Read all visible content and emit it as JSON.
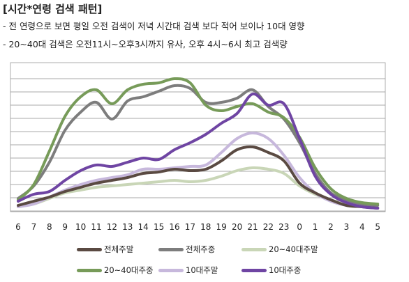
{
  "header": {
    "title": "[시간*연령 검색 패턴]",
    "bullet1": "- 전 연령으로 보면 평일 오전 검색이 저녁 시간대 검색 보다 적어 보이나 10대 영향",
    "bullet2": "- 20~40대 검색은 오전11시~오후3시까지 유사, 오후 4시~6시 최고 검색량"
  },
  "chart_data": {
    "type": "line",
    "title": "",
    "xlabel": "",
    "ylabel": "",
    "x": [
      "6",
      "7",
      "8",
      "9",
      "10",
      "11",
      "12",
      "13",
      "14",
      "15",
      "16",
      "17",
      "18",
      "19",
      "20",
      "21",
      "22",
      "23",
      "0",
      "1",
      "2",
      "3",
      "4",
      "5"
    ],
    "ylim": [
      0,
      10
    ],
    "grid": true,
    "legend_position": "bottom",
    "series": [
      {
        "name": "전체주말",
        "color": "#5a4a42",
        "values": [
          0.4,
          0.7,
          1.0,
          1.4,
          1.7,
          2.0,
          2.2,
          2.4,
          2.7,
          2.8,
          3.0,
          2.9,
          3.0,
          3.6,
          4.4,
          4.6,
          4.2,
          3.6,
          2.0,
          1.3,
          0.8,
          0.4,
          0.3,
          0.2
        ]
      },
      {
        "name": "전체주중",
        "color": "#7d7d7d",
        "values": [
          0.9,
          1.8,
          3.5,
          5.8,
          7.1,
          7.8,
          6.6,
          7.9,
          8.2,
          8.6,
          9.0,
          8.8,
          7.8,
          7.8,
          8.1,
          8.7,
          7.5,
          6.6,
          4.9,
          2.7,
          1.3,
          0.8,
          0.5,
          0.4
        ]
      },
      {
        "name": "20~40대주말",
        "color": "#c9d6b7",
        "values": [
          0.3,
          0.5,
          0.9,
          1.3,
          1.5,
          1.7,
          1.8,
          1.9,
          2.0,
          2.1,
          2.2,
          2.1,
          2.2,
          2.5,
          2.9,
          3.1,
          3.0,
          2.7,
          1.8,
          1.2,
          0.8,
          0.5,
          0.3,
          0.2
        ]
      },
      {
        "name": "20~40대주중",
        "color": "#779b59",
        "values": [
          0.8,
          1.9,
          4.3,
          6.8,
          8.2,
          8.7,
          7.7,
          8.7,
          9.1,
          9.2,
          9.5,
          9.2,
          7.6,
          7.2,
          7.5,
          7.7,
          7.1,
          6.7,
          5.3,
          3.1,
          1.6,
          0.9,
          0.6,
          0.5
        ]
      },
      {
        "name": "10대주말",
        "color": "#c7b8dc",
        "values": [
          0.3,
          0.5,
          1.0,
          1.5,
          1.9,
          2.2,
          2.4,
          2.6,
          3.0,
          3.0,
          3.1,
          3.2,
          3.3,
          4.2,
          5.2,
          5.6,
          5.2,
          4.0,
          2.4,
          1.3,
          0.7,
          0.4,
          0.3,
          0.2
        ]
      },
      {
        "name": "10대주중",
        "color": "#6f45a3",
        "values": [
          0.7,
          1.2,
          1.4,
          2.2,
          2.9,
          3.3,
          3.2,
          3.5,
          3.8,
          3.7,
          4.4,
          4.9,
          5.5,
          6.3,
          7.0,
          8.4,
          7.6,
          7.7,
          5.2,
          2.5,
          1.2,
          0.6,
          0.3,
          0.2
        ]
      }
    ]
  }
}
